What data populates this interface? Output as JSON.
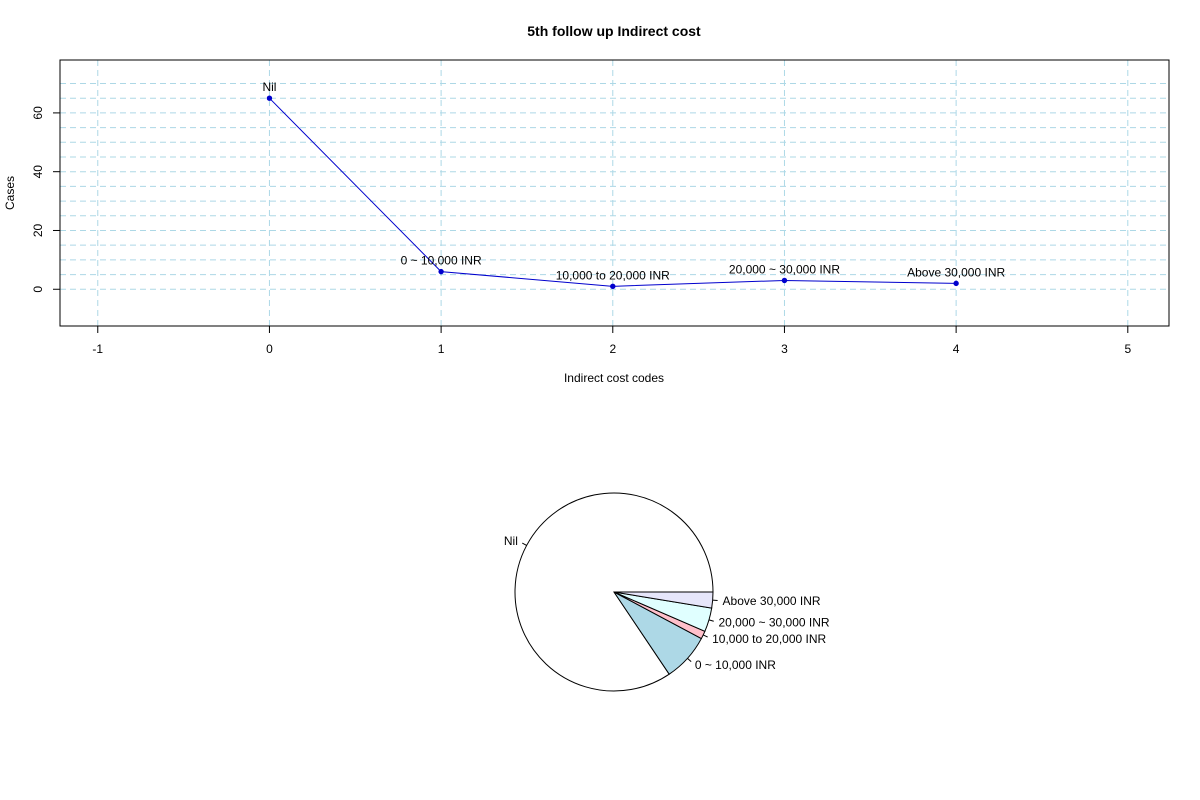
{
  "chart_data": [
    {
      "type": "line",
      "title": "5th follow up Indirect cost",
      "xlabel": "Indirect cost codes",
      "ylabel": "Cases",
      "xlim": [
        -1.22,
        5.24
      ],
      "ylim": [
        -12.5,
        78
      ],
      "x_ticks": [
        -1,
        0,
        1,
        2,
        3,
        4,
        5
      ],
      "y_ticks": [
        0,
        20,
        40,
        60
      ],
      "grid": true,
      "grid_color": "#add8e6",
      "series": [
        {
          "color": "#0000cd",
          "points": [
            {
              "x": 0,
              "y": 65,
              "label": "Nil"
            },
            {
              "x": 1,
              "y": 6,
              "label": "0 ~ 10,000 INR"
            },
            {
              "x": 2,
              "y": 1,
              "label": "10,000 to 20,000 INR"
            },
            {
              "x": 3,
              "y": 3,
              "label": "20,000 ~ 30,000 INR"
            },
            {
              "x": 4,
              "y": 2,
              "label": "Above 30,000 INR"
            }
          ]
        }
      ]
    },
    {
      "type": "pie",
      "slices": [
        {
          "label": "Nil",
          "value": 65,
          "color": "#ffffff"
        },
        {
          "label": "0 ~ 10,000 INR",
          "value": 6,
          "color": "#add8e6"
        },
        {
          "label": "10,000 to 20,000 INR",
          "value": 1,
          "color": "#ffc0cb"
        },
        {
          "label": "20,000 ~ 30,000 INR",
          "value": 3,
          "color": "#e0ffff"
        },
        {
          "label": "Above 30,000 INR",
          "value": 2,
          "color": "#e6e6fa"
        }
      ]
    }
  ]
}
